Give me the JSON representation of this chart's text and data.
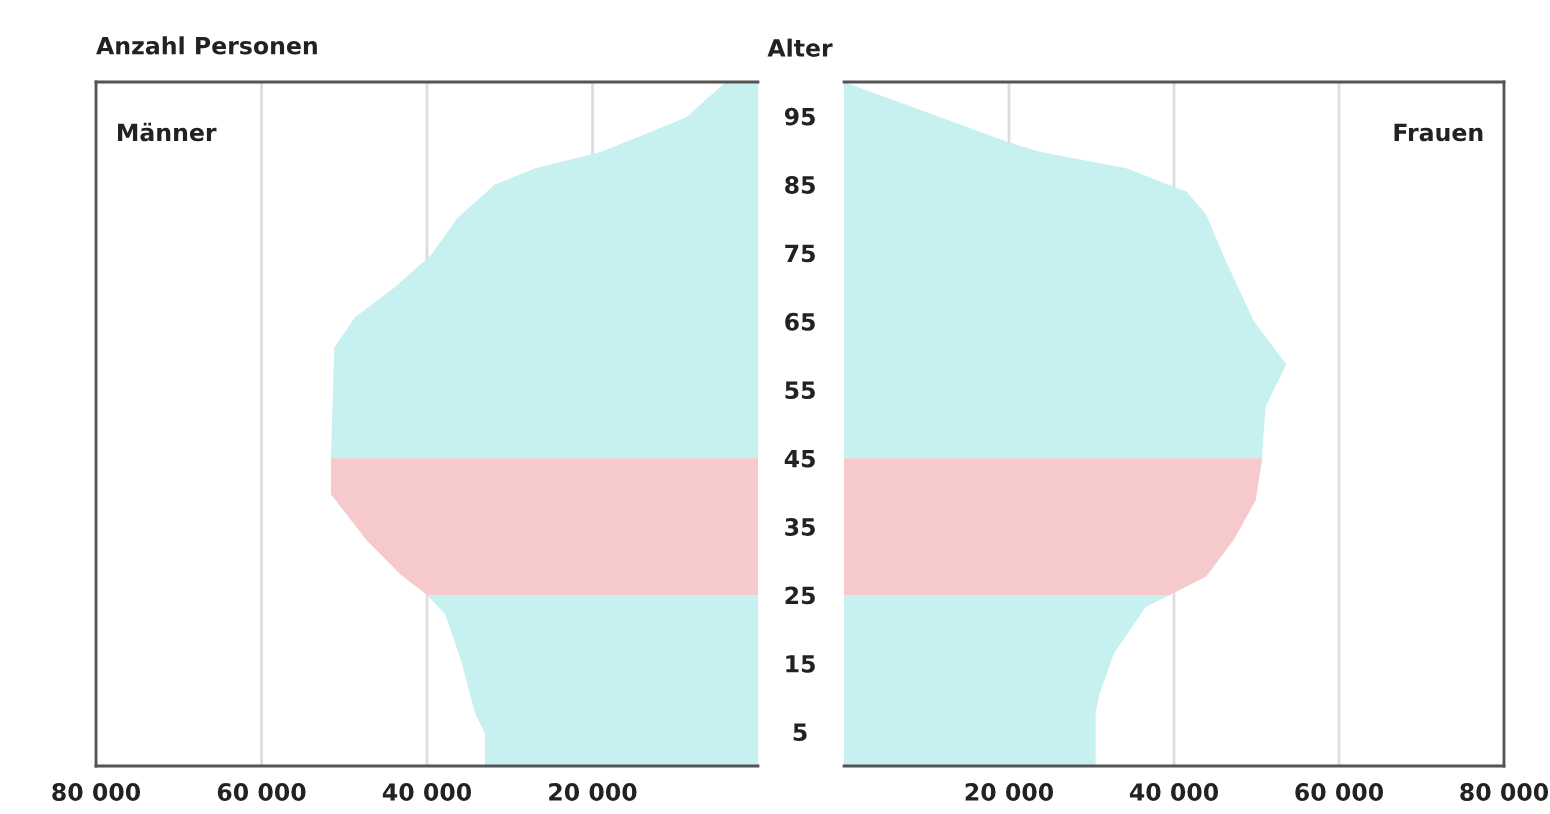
{
  "chart_data": [
    {
      "type": "area",
      "orientation": "horizontal",
      "title": "Anzahl Personen",
      "annotations": [
        "Männer"
      ],
      "series": [
        {
          "color": "#c7f0f0",
          "x": [
            0,
            4.8,
            7.7,
            15.5,
            22.2,
            25,
            null,
            45,
            45.6,
            61.2,
            65.6,
            70,
            74.7,
            80,
            85,
            87.4,
            89.8,
            94.8,
            100
          ],
          "values": [
            33000,
            33000,
            34200,
            35900,
            37800,
            40000,
            null,
            51600,
            51600,
            51200,
            48700,
            43900,
            39500,
            36400,
            31800,
            26900,
            18900,
            8700,
            3900
          ]
        },
        {
          "color": "#f6cacd",
          "x": [
            25,
            28,
            33,
            39.7,
            45
          ],
          "values": [
            40000,
            43200,
            47300,
            51600,
            51600
          ]
        }
      ],
      "xlim": [
        80000,
        0
      ],
      "xticks": [
        {
          "value": 80000,
          "label": "80 000"
        },
        {
          "value": 60000,
          "label": "60 000"
        },
        {
          "value": 40000,
          "label": "40 000"
        },
        {
          "value": 20000,
          "label": "20 000"
        }
      ],
      "ylim": [
        0,
        100
      ],
      "grid": "x",
      "tick_labels": "x"
    },
    {
      "type": "area",
      "orientation": "horizontal",
      "ylabel": "Alter",
      "annotations": [
        "Frauen"
      ],
      "series": [
        {
          "color": "#c7f0f0",
          "x": [
            0,
            7.7,
            10.6,
            16.4,
            23.3,
            25,
            null,
            45,
            45.6,
            52.5,
            58.7,
            65,
            73.8,
            80.6,
            84,
            87.4,
            89.8,
            91.3,
            100
          ],
          "values": [
            30500,
            30500,
            31000,
            32700,
            36600,
            39500,
            null,
            50700,
            50700,
            51100,
            53600,
            49700,
            46300,
            43900,
            41500,
            34200,
            23700,
            19700,
            0
          ]
        },
        {
          "color": "#f6cacd",
          "x": [
            25,
            27.7,
            33,
            38.8,
            45
          ],
          "values": [
            39500,
            43900,
            47200,
            49900,
            50700
          ]
        }
      ],
      "xlim": [
        0,
        80000
      ],
      "xticks": [
        {
          "value": 20000,
          "label": "20 000"
        },
        {
          "value": 40000,
          "label": "40 000"
        },
        {
          "value": 60000,
          "label": "60 000"
        },
        {
          "value": 80000,
          "label": "80 000"
        }
      ],
      "ylim": [
        0,
        100
      ],
      "yticks": [
        5,
        15,
        25,
        35,
        45,
        55,
        65,
        75,
        85,
        95
      ],
      "grid": "x"
    }
  ]
}
